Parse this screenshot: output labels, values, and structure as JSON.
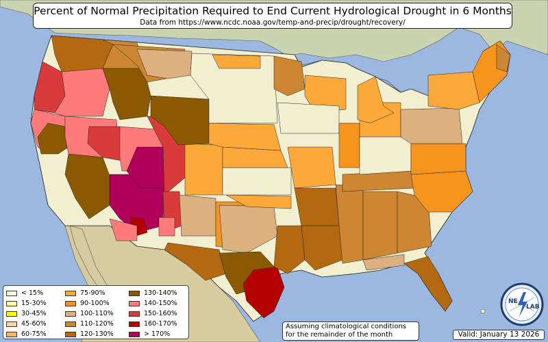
{
  "header": {
    "title": "Percent of Normal Precipitation Required to End Current Hydrological Drought in 6 Months",
    "subtitle": "Data from https://www.ncdc.noaa.gov/temp-and-precip/drought/recovery/"
  },
  "legend": {
    "items": [
      {
        "label": "< 15%",
        "color": "#ffffe0"
      },
      {
        "label": "15-30%",
        "color": "#ffff99"
      },
      {
        "label": "30-45%",
        "color": "#ffff00"
      },
      {
        "label": "45-60%",
        "color": "#fdd49e"
      },
      {
        "label": "60-75%",
        "color": "#fdb462"
      },
      {
        "label": "75-90%",
        "color": "#fca93a"
      },
      {
        "label": "90-100%",
        "color": "#f7941d"
      },
      {
        "label": "100-110%",
        "color": "#ddb07f"
      },
      {
        "label": "110-120%",
        "color": "#cd8733"
      },
      {
        "label": "120-130%",
        "color": "#b5690f"
      },
      {
        "label": "130-140%",
        "color": "#8b5a00"
      },
      {
        "label": "140-150%",
        "color": "#ff7b7b"
      },
      {
        "label": "150-160%",
        "color": "#d93b3b"
      },
      {
        "label": "160-170%",
        "color": "#b50000"
      },
      {
        "label": "> 170%",
        "color": "#b0005a"
      }
    ]
  },
  "footer": {
    "note_line1": "Assuming climatological conditions",
    "note_line2": "for the remainder of the month",
    "valid": "Valid: January 13 2026"
  },
  "logo": {
    "text_left": "NE",
    "text_right": "LAB",
    "icon": "lightning-globe-icon"
  },
  "colors": {
    "ocean": "#9ab8e0",
    "land_outside": "#d9cfa6",
    "canada": "#c9d3b0",
    "mexico": "#d8cba0",
    "no_drought": "#f1efcf",
    "border": "#1a1a1a"
  }
}
